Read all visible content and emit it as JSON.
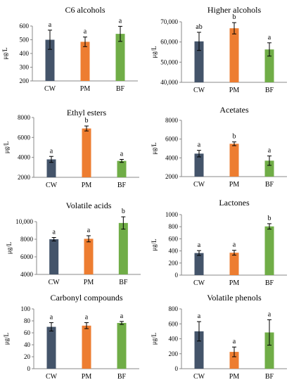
{
  "colors": {
    "CW": "#44546a",
    "PM": "#ed7d31",
    "BF": "#70ad47"
  },
  "chart_data": [
    {
      "type": "bar",
      "title": "C6 alcohols",
      "ylabel": "μg/L",
      "categories": [
        "CW",
        "PM",
        "BF"
      ],
      "values": [
        500,
        485,
        543
      ],
      "errors": [
        70,
        35,
        55
      ],
      "letters": [
        "a",
        "a",
        "a"
      ],
      "ylim": [
        200,
        600
      ],
      "yticks": [
        200,
        300,
        400,
        500,
        600
      ],
      "ytick_labels": [
        "200",
        "300",
        "400",
        "500",
        "600"
      ]
    },
    {
      "type": "bar",
      "title": "Higher alcohols",
      "ylabel": "μg/L",
      "categories": [
        "CW",
        "PM",
        "BF"
      ],
      "values": [
        60300,
        66800,
        56300
      ],
      "errors": [
        4500,
        2800,
        3300
      ],
      "letters": [
        "ab",
        "b",
        "a"
      ],
      "ylim": [
        40000,
        70000
      ],
      "yticks": [
        40000,
        50000,
        60000,
        70000
      ],
      "ytick_labels": [
        "40,000",
        "50,000",
        "60,000",
        "70,000"
      ]
    },
    {
      "type": "bar",
      "title": "Ethyl esters",
      "ylabel": "μg/L",
      "categories": [
        "CW",
        "PM",
        "BF"
      ],
      "values": [
        3800,
        6900,
        3650
      ],
      "errors": [
        300,
        250,
        150
      ],
      "letters": [
        "a",
        "b",
        "a"
      ],
      "ylim": [
        2000,
        8000
      ],
      "yticks": [
        2000,
        4000,
        6000,
        8000
      ],
      "ytick_labels": [
        "2000",
        "4000",
        "6000",
        "8000"
      ]
    },
    {
      "type": "bar",
      "title": "Acetates",
      "ylabel": "μg/L",
      "categories": [
        "CW",
        "PM",
        "BF"
      ],
      "values": [
        4450,
        5500,
        3700
      ],
      "errors": [
        350,
        200,
        500
      ],
      "letters": [
        "a",
        "b",
        "a"
      ],
      "ylim": [
        2000,
        8000
      ],
      "yticks": [
        2000,
        4000,
        6000,
        8000
      ],
      "ytick_labels": [
        "2000",
        "4000",
        "6000",
        "8000"
      ]
    },
    {
      "type": "bar",
      "title": "Volatile acids",
      "ylabel": "μg/L",
      "categories": [
        "CW",
        "PM",
        "BF"
      ],
      "values": [
        8000,
        8050,
        9850
      ],
      "errors": [
        200,
        350,
        700
      ],
      "letters": [
        "a",
        "a",
        "b"
      ],
      "ylim": [
        4000,
        10000
      ],
      "yticks": [
        4000,
        6000,
        8000,
        10000
      ],
      "ytick_labels": [
        "4000",
        "6000",
        "8000",
        "10,000"
      ]
    },
    {
      "type": "bar",
      "title": "Lactones",
      "ylabel": "μg/L",
      "categories": [
        "CW",
        "PM",
        "BF"
      ],
      "values": [
        365,
        370,
        805
      ],
      "errors": [
        40,
        40,
        45
      ],
      "letters": [
        "a",
        "a",
        "b"
      ],
      "ylim": [
        0,
        1000
      ],
      "yticks": [
        0,
        200,
        400,
        600,
        800,
        1000
      ],
      "ytick_labels": [
        "0",
        "200",
        "400",
        "600",
        "800",
        "1000"
      ]
    },
    {
      "type": "bar",
      "title": "Carbonyl compounds",
      "ylabel": "μg/L",
      "categories": [
        "CW",
        "PM",
        "BF"
      ],
      "values": [
        70,
        72,
        76.5
      ],
      "errors": [
        7,
        5,
        2.5
      ],
      "letters": [
        "a",
        "a",
        "a"
      ],
      "ylim": [
        0,
        100
      ],
      "yticks": [
        0,
        20,
        40,
        60,
        80,
        100
      ],
      "ytick_labels": [
        "0",
        "20",
        "40",
        "60",
        "80",
        "100"
      ]
    },
    {
      "type": "bar",
      "title": "Volatile phenols",
      "ylabel": "μg/L",
      "categories": [
        "CW",
        "PM",
        "BF"
      ],
      "values": [
        500,
        225,
        485
      ],
      "errors": [
        130,
        65,
        170
      ],
      "letters": [
        "a",
        "a",
        "a"
      ],
      "ylim": [
        0,
        800
      ],
      "yticks": [
        0,
        200,
        400,
        600,
        800
      ],
      "ytick_labels": [
        "0",
        "200",
        "400",
        "600",
        "800"
      ]
    }
  ]
}
